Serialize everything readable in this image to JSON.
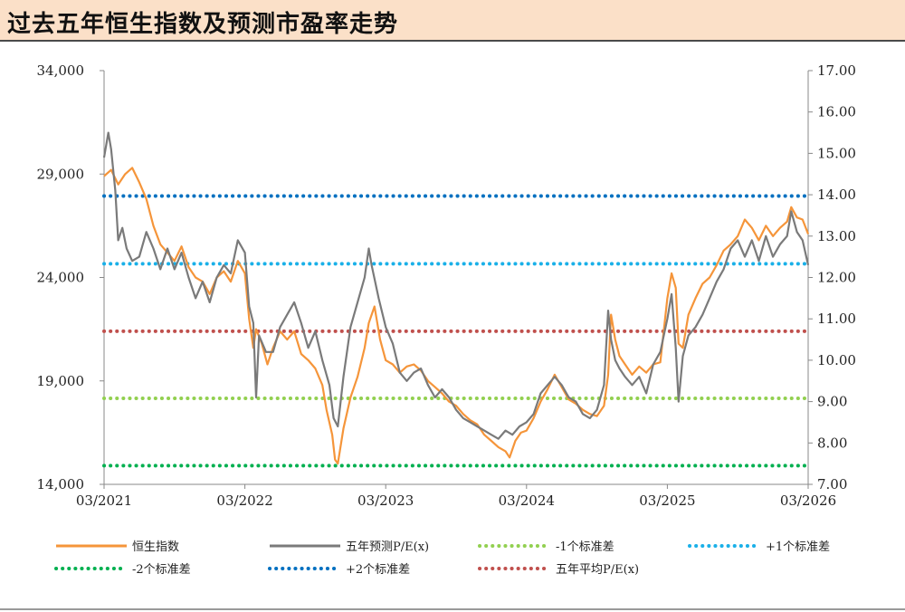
{
  "title": "过去五年恒生指数及预测市盈率走势",
  "chart_data": {
    "type": "line",
    "x_ticks": [
      "03/2021",
      "03/2022",
      "03/2023",
      "03/2024",
      "03/2025",
      "03/2026"
    ],
    "y_left": {
      "min": 14000,
      "max": 34000,
      "ticks": [
        "14,000",
        "19,000",
        "24,000",
        "29,000",
        "34,000"
      ]
    },
    "y_right": {
      "min": 7.0,
      "max": 17.0,
      "ticks": [
        "7.00",
        "8.00",
        "9.00",
        "10.00",
        "11.00",
        "12.00",
        "13.00",
        "14.00",
        "15.00",
        "16.00",
        "17.00"
      ]
    },
    "x_range": [
      2021.0,
      2026.0
    ],
    "series": [
      {
        "name": "恒生指数",
        "axis": "left",
        "color": "#f5953a",
        "points": [
          [
            2021.0,
            28900
          ],
          [
            2021.05,
            29200
          ],
          [
            2021.1,
            28500
          ],
          [
            2021.15,
            29000
          ],
          [
            2021.2,
            29300
          ],
          [
            2021.25,
            28600
          ],
          [
            2021.3,
            27800
          ],
          [
            2021.35,
            26500
          ],
          [
            2021.4,
            25600
          ],
          [
            2021.45,
            25200
          ],
          [
            2021.5,
            24800
          ],
          [
            2021.55,
            25500
          ],
          [
            2021.6,
            24500
          ],
          [
            2021.65,
            24000
          ],
          [
            2021.7,
            23800
          ],
          [
            2021.75,
            23200
          ],
          [
            2021.8,
            24000
          ],
          [
            2021.85,
            24300
          ],
          [
            2021.9,
            23800
          ],
          [
            2021.95,
            24800
          ],
          [
            2022.0,
            24200
          ],
          [
            2022.03,
            22000
          ],
          [
            2022.06,
            20600
          ],
          [
            2022.08,
            21500
          ],
          [
            2022.12,
            20800
          ],
          [
            2022.16,
            19800
          ],
          [
            2022.2,
            20600
          ],
          [
            2022.25,
            21400
          ],
          [
            2022.3,
            21000
          ],
          [
            2022.35,
            21400
          ],
          [
            2022.4,
            20300
          ],
          [
            2022.45,
            20000
          ],
          [
            2022.5,
            19600
          ],
          [
            2022.55,
            18800
          ],
          [
            2022.58,
            17600
          ],
          [
            2022.62,
            16400
          ],
          [
            2022.64,
            15200
          ],
          [
            2022.66,
            15000
          ],
          [
            2022.7,
            16700
          ],
          [
            2022.75,
            18200
          ],
          [
            2022.8,
            19200
          ],
          [
            2022.85,
            20600
          ],
          [
            2022.88,
            21800
          ],
          [
            2022.92,
            22600
          ],
          [
            2022.96,
            21000
          ],
          [
            2023.0,
            20000
          ],
          [
            2023.05,
            19800
          ],
          [
            2023.1,
            19400
          ],
          [
            2023.15,
            19700
          ],
          [
            2023.2,
            19800
          ],
          [
            2023.25,
            19500
          ],
          [
            2023.3,
            19000
          ],
          [
            2023.35,
            18700
          ],
          [
            2023.4,
            18400
          ],
          [
            2023.45,
            18000
          ],
          [
            2023.5,
            17800
          ],
          [
            2023.55,
            17400
          ],
          [
            2023.6,
            17100
          ],
          [
            2023.65,
            16900
          ],
          [
            2023.7,
            16400
          ],
          [
            2023.75,
            16100
          ],
          [
            2023.8,
            15800
          ],
          [
            2023.85,
            15600
          ],
          [
            2023.88,
            15300
          ],
          [
            2023.92,
            16100
          ],
          [
            2023.96,
            16500
          ],
          [
            2024.0,
            16600
          ],
          [
            2024.05,
            17200
          ],
          [
            2024.1,
            18000
          ],
          [
            2024.15,
            18600
          ],
          [
            2024.2,
            19300
          ],
          [
            2024.25,
            18700
          ],
          [
            2024.3,
            18100
          ],
          [
            2024.35,
            17900
          ],
          [
            2024.4,
            17600
          ],
          [
            2024.45,
            17400
          ],
          [
            2024.5,
            17300
          ],
          [
            2024.55,
            17800
          ],
          [
            2024.58,
            19300
          ],
          [
            2024.6,
            22200
          ],
          [
            2024.63,
            21000
          ],
          [
            2024.66,
            20200
          ],
          [
            2024.7,
            19800
          ],
          [
            2024.75,
            19300
          ],
          [
            2024.8,
            19700
          ],
          [
            2024.85,
            19400
          ],
          [
            2024.9,
            19800
          ],
          [
            2024.95,
            19900
          ],
          [
            2025.0,
            23000
          ],
          [
            2025.03,
            24200
          ],
          [
            2025.06,
            23500
          ],
          [
            2025.08,
            20800
          ],
          [
            2025.11,
            20600
          ],
          [
            2025.15,
            22200
          ],
          [
            2025.2,
            23000
          ],
          [
            2025.25,
            23700
          ],
          [
            2025.3,
            24000
          ],
          [
            2025.35,
            24600
          ],
          [
            2025.4,
            25300
          ],
          [
            2025.45,
            25600
          ],
          [
            2025.5,
            26000
          ],
          [
            2025.55,
            26800
          ],
          [
            2025.6,
            26400
          ],
          [
            2025.65,
            25800
          ],
          [
            2025.7,
            26500
          ],
          [
            2025.75,
            26000
          ],
          [
            2025.8,
            26400
          ],
          [
            2025.85,
            26700
          ],
          [
            2025.88,
            27400
          ],
          [
            2025.92,
            26900
          ],
          [
            2025.96,
            26800
          ],
          [
            2026.0,
            26100
          ]
        ]
      },
      {
        "name": "五年预测P/E(x)",
        "axis": "right",
        "color": "#7a7a7a",
        "points": [
          [
            2021.0,
            14.9
          ],
          [
            2021.03,
            15.5
          ],
          [
            2021.05,
            15.1
          ],
          [
            2021.08,
            14.1
          ],
          [
            2021.1,
            12.9
          ],
          [
            2021.13,
            13.2
          ],
          [
            2021.16,
            12.7
          ],
          [
            2021.2,
            12.4
          ],
          [
            2021.25,
            12.5
          ],
          [
            2021.3,
            13.1
          ],
          [
            2021.35,
            12.7
          ],
          [
            2021.4,
            12.2
          ],
          [
            2021.45,
            12.7
          ],
          [
            2021.5,
            12.2
          ],
          [
            2021.55,
            12.6
          ],
          [
            2021.6,
            12.0
          ],
          [
            2021.65,
            11.5
          ],
          [
            2021.7,
            11.9
          ],
          [
            2021.75,
            11.4
          ],
          [
            2021.8,
            12.0
          ],
          [
            2021.85,
            12.3
          ],
          [
            2021.9,
            12.1
          ],
          [
            2021.95,
            12.9
          ],
          [
            2022.0,
            12.6
          ],
          [
            2022.03,
            11.3
          ],
          [
            2022.06,
            10.9
          ],
          [
            2022.08,
            9.1
          ],
          [
            2022.1,
            10.6
          ],
          [
            2022.15,
            10.2
          ],
          [
            2022.2,
            10.2
          ],
          [
            2022.25,
            10.8
          ],
          [
            2022.3,
            11.1
          ],
          [
            2022.35,
            11.4
          ],
          [
            2022.4,
            10.9
          ],
          [
            2022.45,
            10.3
          ],
          [
            2022.5,
            10.7
          ],
          [
            2022.55,
            10.0
          ],
          [
            2022.6,
            9.4
          ],
          [
            2022.63,
            8.6
          ],
          [
            2022.66,
            8.4
          ],
          [
            2022.7,
            9.6
          ],
          [
            2022.75,
            10.8
          ],
          [
            2022.8,
            11.4
          ],
          [
            2022.85,
            12.0
          ],
          [
            2022.88,
            12.7
          ],
          [
            2022.9,
            12.3
          ],
          [
            2022.95,
            11.5
          ],
          [
            2023.0,
            10.8
          ],
          [
            2023.05,
            10.4
          ],
          [
            2023.1,
            9.7
          ],
          [
            2023.15,
            9.5
          ],
          [
            2023.2,
            9.7
          ],
          [
            2023.25,
            9.8
          ],
          [
            2023.3,
            9.4
          ],
          [
            2023.35,
            9.1
          ],
          [
            2023.4,
            9.3
          ],
          [
            2023.45,
            9.1
          ],
          [
            2023.5,
            8.8
          ],
          [
            2023.55,
            8.6
          ],
          [
            2023.6,
            8.5
          ],
          [
            2023.65,
            8.4
          ],
          [
            2023.7,
            8.3
          ],
          [
            2023.75,
            8.2
          ],
          [
            2023.8,
            8.1
          ],
          [
            2023.85,
            8.3
          ],
          [
            2023.9,
            8.2
          ],
          [
            2023.95,
            8.4
          ],
          [
            2024.0,
            8.5
          ],
          [
            2024.05,
            8.7
          ],
          [
            2024.1,
            9.2
          ],
          [
            2024.15,
            9.4
          ],
          [
            2024.2,
            9.6
          ],
          [
            2024.25,
            9.4
          ],
          [
            2024.3,
            9.1
          ],
          [
            2024.35,
            9.0
          ],
          [
            2024.4,
            8.7
          ],
          [
            2024.45,
            8.6
          ],
          [
            2024.5,
            8.8
          ],
          [
            2024.55,
            9.4
          ],
          [
            2024.58,
            11.2
          ],
          [
            2024.6,
            10.5
          ],
          [
            2024.63,
            10.0
          ],
          [
            2024.66,
            9.8
          ],
          [
            2024.7,
            9.6
          ],
          [
            2024.75,
            9.4
          ],
          [
            2024.8,
            9.6
          ],
          [
            2024.85,
            9.2
          ],
          [
            2024.9,
            9.9
          ],
          [
            2024.95,
            10.2
          ],
          [
            2025.0,
            11.0
          ],
          [
            2025.03,
            11.6
          ],
          [
            2025.06,
            10.3
          ],
          [
            2025.08,
            9.0
          ],
          [
            2025.11,
            10.1
          ],
          [
            2025.15,
            10.6
          ],
          [
            2025.2,
            10.8
          ],
          [
            2025.25,
            11.1
          ],
          [
            2025.3,
            11.5
          ],
          [
            2025.35,
            11.9
          ],
          [
            2025.4,
            12.2
          ],
          [
            2025.45,
            12.7
          ],
          [
            2025.5,
            12.9
          ],
          [
            2025.55,
            12.5
          ],
          [
            2025.6,
            12.9
          ],
          [
            2025.65,
            12.4
          ],
          [
            2025.7,
            13.0
          ],
          [
            2025.75,
            12.5
          ],
          [
            2025.8,
            12.8
          ],
          [
            2025.85,
            13.0
          ],
          [
            2025.88,
            13.6
          ],
          [
            2025.92,
            13.1
          ],
          [
            2025.96,
            12.9
          ],
          [
            2026.0,
            12.3
          ]
        ]
      }
    ],
    "reference_lines": [
      {
        "name": "-1个标准差",
        "axis": "right",
        "value": 9.08,
        "color": "#92d050"
      },
      {
        "name": "+1个标准差",
        "axis": "right",
        "value": 12.33,
        "color": "#1ab0e8"
      },
      {
        "name": "-2个标准差",
        "axis": "right",
        "value": 7.45,
        "color": "#00b050"
      },
      {
        "name": "+2个标准差",
        "axis": "right",
        "value": 13.97,
        "color": "#0070c0"
      },
      {
        "name": "五年平均P/E(x)",
        "axis": "right",
        "value": 10.7,
        "color": "#c0504d"
      }
    ],
    "legend": {
      "position": "bottom",
      "items": [
        "恒生指数",
        "五年预测P/E(x)",
        "-1个标准差",
        "+1个标准差",
        "-2个标准差",
        "+2个标准差",
        "五年平均P/E(x)"
      ]
    },
    "grid": false
  }
}
